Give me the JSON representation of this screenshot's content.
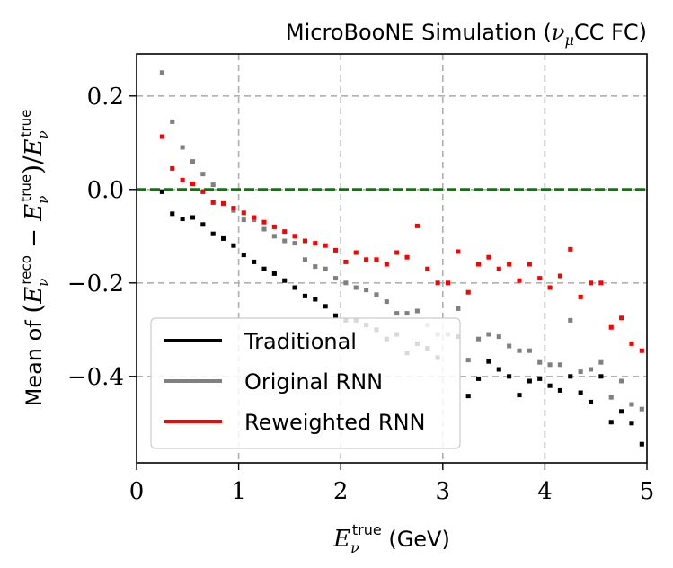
{
  "chart_data": {
    "type": "scatter",
    "title": "MicroBooNE Simulation (ν_μCC FC)",
    "title_main": "MicroBooNE Simulation (",
    "title_nu": "ν",
    "title_mu": "μ",
    "title_tail": "CC FC)",
    "xlabel": "E_ν^true (GeV)",
    "xlabel_E": "E",
    "xlabel_sub": "ν",
    "xlabel_sup": "true",
    "xlabel_unit": " (GeV)",
    "ylabel": "Mean of (E_ν^reco − E_ν^true)/E_ν^true",
    "ylabel_prefix": "Mean of ",
    "xlim": [
      0,
      5
    ],
    "ylim": [
      -0.585,
      0.29
    ],
    "xticks": [
      0,
      1,
      2,
      3,
      4,
      5
    ],
    "xtick_labels": [
      "0",
      "1",
      "2",
      "3",
      "4",
      "5"
    ],
    "yticks": [
      -0.4,
      -0.2,
      0.0,
      0.2
    ],
    "ytick_labels": [
      "−0.4",
      "−0.2",
      "0.0",
      "0.2"
    ],
    "grid": true,
    "bin_width": 0.1,
    "reference_line": {
      "y": 0.0,
      "color": "#008000",
      "style": "dashed"
    },
    "legend_position": "lower-left",
    "series": [
      {
        "name": "Traditional",
        "color": "#000000",
        "x": [
          0.25,
          0.35,
          0.45,
          0.55,
          0.65,
          0.75,
          0.85,
          0.95,
          1.05,
          1.15,
          1.25,
          1.35,
          1.45,
          1.55,
          1.65,
          1.75,
          1.85,
          1.95,
          2.05,
          2.15,
          2.25,
          2.35,
          2.45,
          2.55,
          2.65,
          2.75,
          2.85,
          2.95,
          3.05,
          3.15,
          3.25,
          3.35,
          3.45,
          3.55,
          3.65,
          3.75,
          3.85,
          3.95,
          4.05,
          4.15,
          4.25,
          4.35,
          4.45,
          4.55,
          4.65,
          4.75,
          4.85,
          4.95
        ],
        "values": [
          -0.005,
          -0.052,
          -0.063,
          -0.06,
          -0.075,
          -0.095,
          -0.105,
          -0.12,
          -0.14,
          -0.155,
          -0.17,
          -0.18,
          -0.195,
          -0.21,
          -0.228,
          -0.235,
          -0.25,
          -0.27,
          -0.28,
          -0.28,
          -0.29,
          -0.3,
          -0.32,
          -0.31,
          -0.35,
          -0.33,
          -0.34,
          -0.36,
          -0.31,
          -0.315,
          -0.442,
          -0.405,
          -0.368,
          -0.385,
          -0.4,
          -0.44,
          -0.41,
          -0.405,
          -0.42,
          -0.43,
          -0.4,
          -0.435,
          -0.455,
          -0.4,
          -0.498,
          -0.475,
          -0.5,
          -0.545
        ]
      },
      {
        "name": "Original RNN",
        "color": "#808080",
        "x": [
          0.25,
          0.35,
          0.45,
          0.55,
          0.65,
          0.75,
          0.85,
          0.95,
          1.05,
          1.15,
          1.25,
          1.35,
          1.45,
          1.55,
          1.65,
          1.75,
          1.85,
          1.95,
          2.05,
          2.15,
          2.25,
          2.35,
          2.45,
          2.55,
          2.65,
          2.75,
          2.85,
          2.95,
          3.05,
          3.15,
          3.25,
          3.35,
          3.45,
          3.55,
          3.65,
          3.75,
          3.85,
          3.95,
          4.05,
          4.15,
          4.25,
          4.35,
          4.45,
          4.55,
          4.65,
          4.75,
          4.85,
          4.95
        ],
        "values": [
          0.25,
          0.145,
          0.09,
          0.06,
          0.033,
          0.01,
          -0.03,
          -0.045,
          -0.065,
          -0.065,
          -0.085,
          -0.1,
          -0.11,
          -0.115,
          -0.15,
          -0.165,
          -0.17,
          -0.19,
          -0.2,
          -0.21,
          -0.215,
          -0.225,
          -0.24,
          -0.265,
          -0.265,
          -0.26,
          -0.29,
          -0.31,
          -0.31,
          -0.255,
          -0.365,
          -0.32,
          -0.31,
          -0.315,
          -0.335,
          -0.345,
          -0.345,
          -0.37,
          -0.375,
          -0.375,
          -0.28,
          -0.39,
          -0.385,
          -0.37,
          -0.445,
          -0.41,
          -0.46,
          -0.47
        ]
      },
      {
        "name": "Reweighted RNN",
        "color": "#ff0000",
        "x": [
          0.25,
          0.35,
          0.45,
          0.55,
          0.65,
          0.75,
          0.85,
          0.95,
          1.05,
          1.15,
          1.25,
          1.35,
          1.45,
          1.55,
          1.65,
          1.75,
          1.85,
          1.95,
          2.05,
          2.15,
          2.25,
          2.35,
          2.45,
          2.55,
          2.65,
          2.75,
          2.85,
          2.95,
          3.05,
          3.15,
          3.25,
          3.35,
          3.45,
          3.55,
          3.65,
          3.75,
          3.85,
          3.95,
          4.05,
          4.15,
          4.25,
          4.35,
          4.45,
          4.55,
          4.65,
          4.75,
          4.85,
          4.95
        ],
        "values": [
          0.113,
          0.045,
          0.02,
          0.012,
          -0.005,
          -0.028,
          -0.03,
          -0.04,
          -0.05,
          -0.06,
          -0.07,
          -0.08,
          -0.09,
          -0.1,
          -0.11,
          -0.115,
          -0.12,
          -0.13,
          -0.155,
          -0.135,
          -0.15,
          -0.15,
          -0.16,
          -0.135,
          -0.145,
          -0.078,
          -0.17,
          -0.2,
          -0.2,
          -0.133,
          -0.22,
          -0.16,
          -0.145,
          -0.17,
          -0.16,
          -0.195,
          -0.16,
          -0.19,
          -0.21,
          -0.185,
          -0.128,
          -0.23,
          -0.2,
          -0.2,
          -0.295,
          -0.275,
          -0.33,
          -0.345
        ]
      }
    ]
  }
}
